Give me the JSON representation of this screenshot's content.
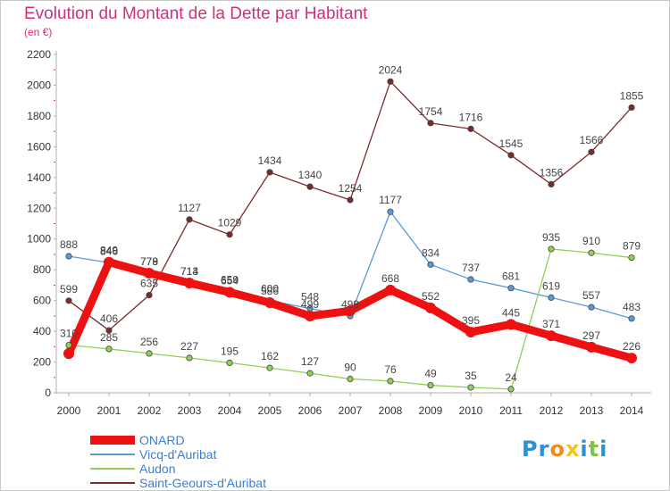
{
  "title": "Evolution du Montant de la Dette par Habitant",
  "subtitle": "(en €)",
  "logo": {
    "text": "Proxiti",
    "colors": [
      "#2f8fd0",
      "#2f8fd0",
      "#f28a1c",
      "#f2c41c",
      "#2f8fd0",
      "#7fc24a",
      "#2f8fd0"
    ]
  },
  "chart_data": {
    "type": "line",
    "x": [
      2000,
      2001,
      2002,
      2003,
      2004,
      2005,
      2006,
      2007,
      2008,
      2009,
      2010,
      2011,
      2012,
      2013,
      2014
    ],
    "ylim": [
      0,
      2200
    ],
    "yticks": [
      0,
      200,
      400,
      600,
      800,
      1000,
      1200,
      1400,
      1600,
      1800,
      2000,
      2200
    ],
    "grid": false,
    "legend_position": "bottom-left",
    "series": [
      {
        "name": "ONARD",
        "color": "#ee1111",
        "values": [
          255,
          849,
          778,
          714,
          654,
          586,
          499,
          533,
          668,
          552,
          395,
          445,
          371,
          297,
          226
        ],
        "labels": [
          "",
          "849",
          "778",
          "714",
          "654",
          "586",
          "499",
          "",
          "668",
          "552",
          "395",
          "445",
          "371",
          "297",
          "226"
        ]
      },
      {
        "name": "Vicq-d'Auribat",
        "color": "#5a9bd6",
        "values": [
          888,
          846,
          779,
          713,
          659,
          600,
          548,
          499,
          1177,
          834,
          737,
          681,
          619,
          557,
          483
        ],
        "labels": [
          "888",
          "846",
          "779",
          "713",
          "659",
          "600",
          "548",
          "499",
          "1177",
          "834",
          "737",
          "681",
          "619",
          "557",
          "483"
        ]
      },
      {
        "name": "Audon",
        "color": "#8fd05a",
        "values": [
          310,
          285,
          256,
          227,
          195,
          162,
          127,
          90,
          76,
          49,
          35,
          24,
          935,
          910,
          879
        ],
        "labels": [
          "310",
          "285",
          "256",
          "227",
          "195",
          "162",
          "127",
          "90",
          "76",
          "49",
          "35",
          "24",
          "935",
          "910",
          "879"
        ]
      },
      {
        "name": "Saint-Geours-d'Auribat",
        "color": "#7a2a2a",
        "values": [
          599,
          406,
          635,
          1127,
          1029,
          1434,
          1340,
          1254,
          2024,
          1754,
          1716,
          1545,
          1356,
          1566,
          1855
        ],
        "labels": [
          "599",
          "406",
          "635",
          "1127",
          "1029",
          "1434",
          "1340",
          "1254",
          "2024",
          "1754",
          "1716",
          "1545",
          "1356",
          "1566",
          "1855"
        ]
      }
    ]
  }
}
